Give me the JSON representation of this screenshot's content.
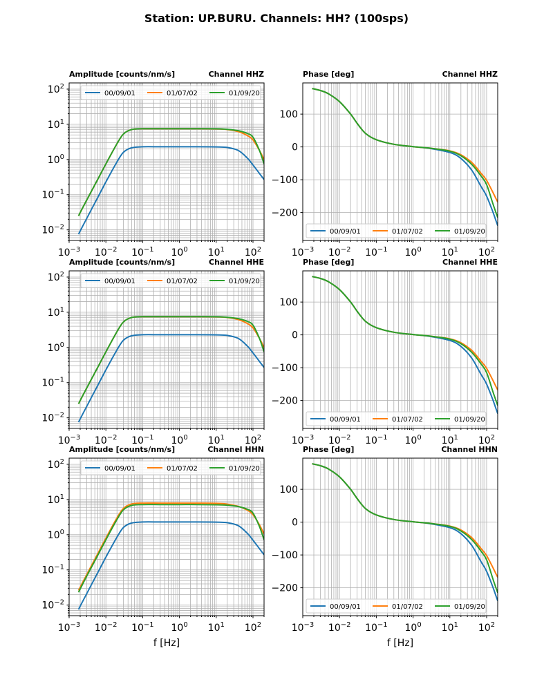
{
  "chart_data": {
    "type": "line",
    "title": "Station: UP.BURU. Channels: HH? (100sps)",
    "xlabel": "f [Hz]",
    "x_scale": "log",
    "xlim": [
      0.001,
      200
    ],
    "x_tick_labels": [
      "10^-3",
      "10^-2",
      "10^-1",
      "10^0",
      "10^1",
      "10^2"
    ],
    "x": [
      0.0018,
      0.003,
      0.005,
      0.01,
      0.02,
      0.03,
      0.05,
      0.1,
      0.3,
      1,
      3,
      10,
      20,
      40,
      70,
      100,
      150,
      200
    ],
    "legend": {
      "entries": [
        "00/09/01",
        "01/07/02",
        "01/09/20"
      ],
      "colors": [
        "#1f77b4",
        "#ff7f0e",
        "#2ca02c"
      ]
    },
    "panels": [
      {
        "kind": "amplitude",
        "channel_label": "Channel HHZ",
        "ylabel": "Amplitude [counts/nm/s]",
        "y_scale": "log",
        "ylim": [
          0.005,
          150
        ],
        "y_tick_labels": [
          "10^-2",
          "10^-1",
          "10^0",
          "10^1",
          "10^2"
        ],
        "legend_position": "top",
        "series": [
          {
            "name": "00/09/01",
            "values": [
              0.0075,
              0.021,
              0.058,
              0.23,
              0.85,
              1.6,
              2.15,
              2.3,
              2.3,
              2.3,
              2.3,
              2.28,
              2.2,
              1.8,
              1.1,
              0.7,
              0.4,
              0.27
            ]
          },
          {
            "name": "01/07/02",
            "values": [
              0.025,
              0.07,
              0.19,
              0.75,
              2.8,
              5.3,
              7.1,
              7.5,
              7.5,
              7.5,
              7.5,
              7.4,
              7.1,
              6.2,
              4.8,
              3.6,
              1.8,
              1.0
            ]
          },
          {
            "name": "01/09/20",
            "values": [
              0.025,
              0.07,
              0.19,
              0.75,
              2.8,
              5.3,
              7.1,
              7.5,
              7.5,
              7.5,
              7.5,
              7.45,
              7.2,
              6.6,
              5.5,
              4.3,
              1.8,
              0.75
            ]
          }
        ]
      },
      {
        "kind": "phase",
        "channel_label": "Channel HHZ",
        "ylabel": "Phase [deg]",
        "y_scale": "linear",
        "ylim": [
          -285,
          195
        ],
        "y_tick_labels": [
          "-200",
          "-100",
          "0",
          "100"
        ],
        "legend_position": "bottom",
        "series": [
          {
            "name": "00/09/01",
            "values": [
              178,
              172,
              162,
              138,
              100,
              72,
              42,
              22,
              8,
              1,
              -5,
              -17,
              -35,
              -72,
              -120,
              -150,
              -200,
              -240
            ]
          },
          {
            "name": "01/07/02",
            "values": [
              178,
              172,
              162,
              138,
              100,
              72,
              42,
              22,
              8,
              1,
              -4,
              -12,
              -24,
              -48,
              -80,
              -102,
              -140,
              -168
            ]
          },
          {
            "name": "01/09/20",
            "values": [
              178,
              172,
              162,
              138,
              100,
              72,
              42,
              22,
              8,
              1,
              -4,
              -13,
              -27,
              -54,
              -88,
              -115,
              -175,
              -215
            ]
          }
        ]
      },
      {
        "kind": "amplitude",
        "channel_label": "Channel HHE",
        "ylabel": "Amplitude [counts/nm/s]",
        "y_scale": "log",
        "ylim": [
          0.005,
          150
        ],
        "y_tick_labels": [
          "10^-2",
          "10^-1",
          "10^0",
          "10^1",
          "10^2"
        ],
        "legend_position": "top",
        "series": [
          {
            "name": "00/09/01",
            "values": [
              0.0075,
              0.021,
              0.058,
              0.23,
              0.85,
              1.6,
              2.15,
              2.3,
              2.3,
              2.3,
              2.3,
              2.28,
              2.2,
              1.8,
              1.1,
              0.7,
              0.4,
              0.27
            ]
          },
          {
            "name": "01/07/02",
            "values": [
              0.025,
              0.07,
              0.19,
              0.75,
              2.8,
              5.3,
              7.1,
              7.5,
              7.5,
              7.5,
              7.5,
              7.4,
              7.1,
              6.2,
              4.8,
              3.6,
              1.8,
              1.0
            ]
          },
          {
            "name": "01/09/20",
            "values": [
              0.025,
              0.07,
              0.19,
              0.75,
              2.8,
              5.3,
              7.1,
              7.5,
              7.5,
              7.5,
              7.5,
              7.45,
              7.2,
              6.6,
              5.5,
              4.3,
              1.8,
              0.75
            ]
          }
        ]
      },
      {
        "kind": "phase",
        "channel_label": "Channel HHE",
        "ylabel": "Phase [deg]",
        "y_scale": "linear",
        "ylim": [
          -285,
          195
        ],
        "y_tick_labels": [
          "-200",
          "-100",
          "0",
          "100"
        ],
        "legend_position": "bottom",
        "series": [
          {
            "name": "00/09/01",
            "values": [
              178,
              172,
              162,
              138,
              100,
              72,
              42,
              22,
              8,
              1,
              -5,
              -17,
              -35,
              -72,
              -120,
              -150,
              -200,
              -240
            ]
          },
          {
            "name": "01/07/02",
            "values": [
              178,
              172,
              162,
              138,
              100,
              72,
              42,
              22,
              8,
              1,
              -4,
              -12,
              -24,
              -48,
              -80,
              -102,
              -140,
              -168
            ]
          },
          {
            "name": "01/09/20",
            "values": [
              178,
              172,
              162,
              138,
              100,
              72,
              42,
              22,
              8,
              1,
              -4,
              -13,
              -27,
              -54,
              -88,
              -115,
              -175,
              -215
            ]
          }
        ]
      },
      {
        "kind": "amplitude",
        "channel_label": "Channel HHN",
        "ylabel": "Amplitude [counts/nm/s]",
        "y_scale": "log",
        "ylim": [
          0.005,
          150
        ],
        "y_tick_labels": [
          "10^-2",
          "10^-1",
          "10^0",
          "10^1",
          "10^2"
        ],
        "legend_position": "top",
        "series": [
          {
            "name": "00/09/01",
            "values": [
              0.0075,
              0.021,
              0.058,
              0.23,
              0.85,
              1.6,
              2.15,
              2.3,
              2.3,
              2.3,
              2.3,
              2.28,
              2.2,
              1.8,
              1.1,
              0.7,
              0.4,
              0.27
            ]
          },
          {
            "name": "01/07/02",
            "values": [
              0.026,
              0.073,
              0.2,
              0.8,
              3.0,
              5.6,
              7.5,
              7.9,
              7.9,
              7.9,
              7.9,
              7.8,
              7.4,
              6.4,
              5.0,
              3.7,
              1.9,
              1.05
            ]
          },
          {
            "name": "01/09/20",
            "values": [
              0.023,
              0.066,
              0.18,
              0.72,
              2.7,
              5.1,
              6.8,
              7.2,
              7.2,
              7.2,
              7.2,
              7.1,
              6.9,
              6.3,
              5.3,
              4.1,
              1.7,
              0.72
            ]
          }
        ]
      },
      {
        "kind": "phase",
        "channel_label": "Channel HHN",
        "ylabel": "Phase [deg]",
        "y_scale": "linear",
        "ylim": [
          -285,
          195
        ],
        "y_tick_labels": [
          "-200",
          "-100",
          "0",
          "100"
        ],
        "legend_position": "bottom",
        "series": [
          {
            "name": "00/09/01",
            "values": [
              178,
              172,
              162,
              138,
              100,
              72,
              42,
              22,
              8,
              1,
              -5,
              -17,
              -35,
              -72,
              -120,
              -150,
              -200,
              -240
            ]
          },
          {
            "name": "01/07/02",
            "values": [
              178,
              172,
              162,
              138,
              100,
              72,
              42,
              22,
              8,
              1,
              -4,
              -12,
              -24,
              -48,
              -80,
              -102,
              -140,
              -168
            ]
          },
          {
            "name": "01/09/20",
            "values": [
              178,
              172,
              162,
              138,
              100,
              72,
              42,
              22,
              8,
              1,
              -4,
              -13,
              -27,
              -54,
              -88,
              -115,
              -175,
              -215
            ]
          }
        ]
      }
    ]
  }
}
